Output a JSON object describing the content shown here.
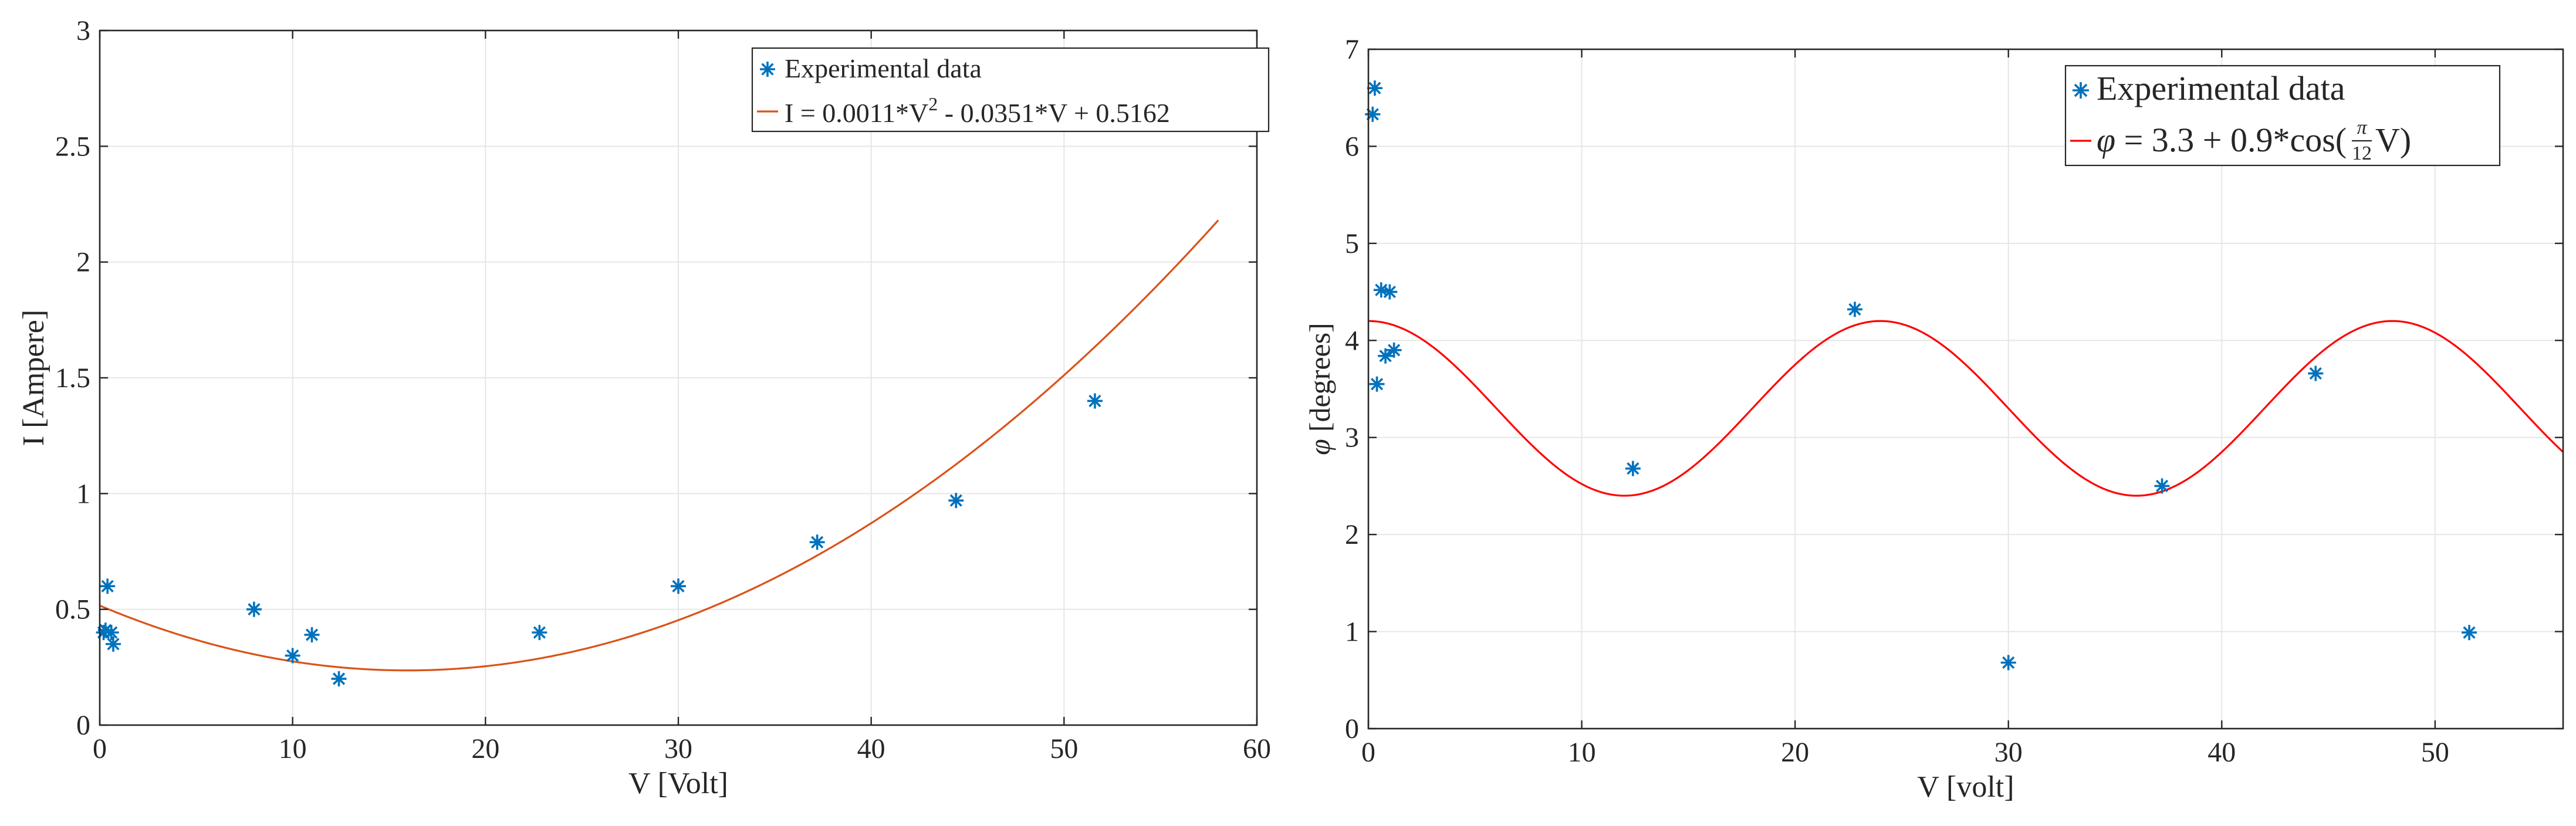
{
  "chart_data": [
    {
      "type": "scatter",
      "title": "",
      "xlabel": "V [Volt]",
      "ylabel": "I [Ampere]",
      "xlim": [
        0,
        60
      ],
      "ylim": [
        0,
        3
      ],
      "xticks": [
        0,
        10,
        20,
        30,
        40,
        50,
        60
      ],
      "yticks": [
        0,
        0.5,
        1,
        1.5,
        2,
        2.5,
        3
      ],
      "xtick_labels": [
        "0",
        "10",
        "20",
        "30",
        "40",
        "50",
        "60"
      ],
      "ytick_labels": [
        "0",
        "0.5",
        "1",
        "1.5",
        "2",
        "2.5",
        "3"
      ],
      "grid": true,
      "legend_position": "top-right",
      "series": [
        {
          "name": "Experimental data",
          "kind": "scatter",
          "marker": "*",
          "color": "#0072BD",
          "x": [
            0.2,
            0.3,
            0.4,
            0.6,
            0.7,
            8.0,
            10.0,
            11.0,
            12.4,
            22.8,
            30.0,
            37.2,
            44.4,
            51.6
          ],
          "y": [
            0.4,
            0.41,
            0.6,
            0.4,
            0.35,
            0.5,
            0.3,
            0.39,
            0.2,
            0.4,
            0.6,
            0.79,
            0.97,
            1.4
          ]
        },
        {
          "name": "I = 0.0011*V^2 - 0.0351*V + 0.5162",
          "kind": "line",
          "color": "#D95319",
          "formula": {
            "type": "polynomial",
            "coefficients": [
              0.0011,
              -0.0351,
              0.5162
            ]
          },
          "x_range": [
            0,
            58
          ]
        }
      ],
      "legend": [
        {
          "label": "Experimental data",
          "series": 0
        },
        {
          "label_prefix": "I = 0.0011*V",
          "label_sup": "2",
          "label_suffix": " - 0.0351*V + 0.5162",
          "series": 1
        }
      ]
    },
    {
      "type": "scatter",
      "title": "",
      "xlabel": "V [volt]",
      "ylabel_symbol": "φ",
      "ylabel_text": "[degrees]",
      "xlim": [
        0,
        56
      ],
      "ylim": [
        0,
        7
      ],
      "xticks": [
        0,
        10,
        20,
        30,
        40,
        50
      ],
      "yticks": [
        0,
        1,
        2,
        3,
        4,
        5,
        6,
        7
      ],
      "xtick_labels": [
        "0",
        "10",
        "20",
        "30",
        "40",
        "50"
      ],
      "ytick_labels": [
        "0",
        "1",
        "2",
        "3",
        "4",
        "5",
        "6",
        "7"
      ],
      "grid": true,
      "legend_position": "top-right",
      "series": [
        {
          "name": "Experimental data",
          "kind": "scatter",
          "marker": "*",
          "color": "#0072BD",
          "x": [
            0.2,
            0.3,
            0.4,
            0.6,
            0.8,
            1.0,
            1.2,
            12.4,
            22.8,
            30.0,
            37.2,
            44.4,
            51.6
          ],
          "y": [
            6.33,
            6.6,
            3.55,
            4.52,
            3.84,
            4.5,
            3.9,
            2.68,
            4.32,
            0.68,
            2.5,
            3.66,
            0.99
          ]
        },
        {
          "name": "φ = 3.3 + 0.9*cos(π/12 V)",
          "kind": "line",
          "color": "#FF0000",
          "formula": {
            "type": "cosine",
            "offset": 3.3,
            "amplitude": 0.9,
            "omega_over_pi": 0.08333333
          },
          "x_range": [
            0,
            56
          ]
        }
      ],
      "legend": [
        {
          "label": "Experimental data",
          "series": 0
        },
        {
          "phi": "φ",
          "eq_left": " = 3.3 + 0.9*cos(",
          "frac_num": "π",
          "frac_den": "12",
          "eq_right": "V)",
          "series": 1
        }
      ]
    }
  ]
}
